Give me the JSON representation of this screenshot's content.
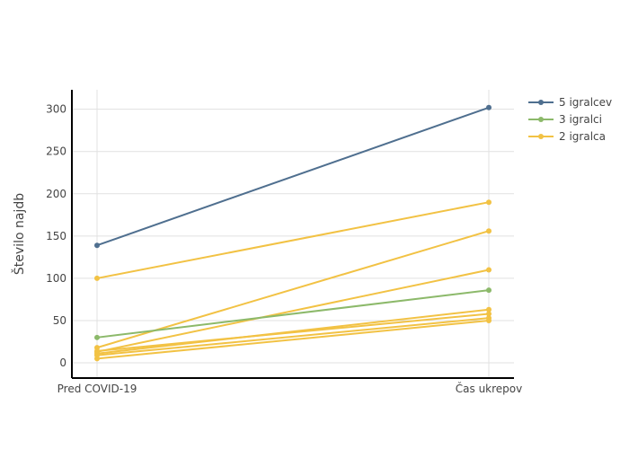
{
  "chart_data": {
    "type": "line",
    "title": "",
    "xlabel": "",
    "ylabel": "Število najdb",
    "categories": [
      "Pred COVID-19",
      "Čas ukrepov"
    ],
    "ylim": [
      -18,
      323
    ],
    "yticks": [
      0,
      50,
      100,
      150,
      200,
      250,
      300
    ],
    "grid": true,
    "legend_position": "top-right",
    "legend": [
      {
        "name": "5 igralcev",
        "color": "#4f6f8f"
      },
      {
        "name": "3 igralci",
        "color": "#8cb96a"
      },
      {
        "name": "2 igralca",
        "color": "#f2c244"
      }
    ],
    "series": [
      {
        "group": "2 igralca",
        "color": "#f2c244",
        "values": [
          100,
          190
        ]
      },
      {
        "group": "2 igralca",
        "color": "#f2c244",
        "values": [
          18,
          156
        ]
      },
      {
        "group": "2 igralca",
        "color": "#f2c244",
        "values": [
          13,
          110
        ]
      },
      {
        "group": "2 igralca",
        "color": "#f2c244",
        "values": [
          11,
          63
        ]
      },
      {
        "group": "2 igralca",
        "color": "#f2c244",
        "values": [
          14,
          58
        ]
      },
      {
        "group": "2 igralca",
        "color": "#f2c244",
        "values": [
          9,
          53
        ]
      },
      {
        "group": "2 igralca",
        "color": "#f2c244",
        "values": [
          5,
          50
        ]
      },
      {
        "group": "3 igralci",
        "color": "#8cb96a",
        "values": [
          30,
          86
        ]
      },
      {
        "group": "5 igralcev",
        "color": "#4f6f8f",
        "values": [
          139,
          302
        ]
      }
    ]
  }
}
